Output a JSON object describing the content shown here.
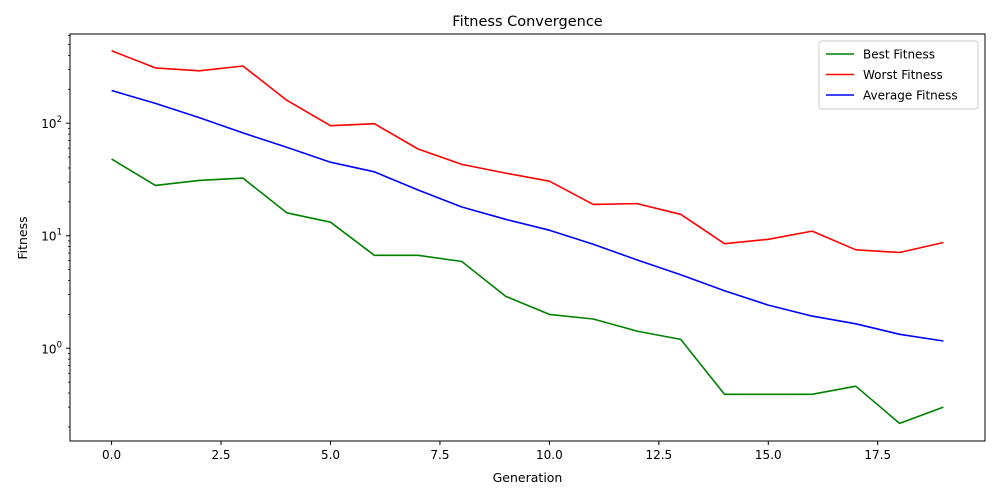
{
  "chart_data": {
    "type": "line",
    "title": "Fitness Convergence",
    "xlabel": "Generation",
    "ylabel": "Fitness",
    "yscale": "log",
    "xlim": [
      -0.95,
      19.95
    ],
    "ylim": [
      0.15,
      620
    ],
    "x_ticks": [
      0.0,
      2.5,
      5.0,
      7.5,
      10.0,
      12.5,
      15.0,
      17.5
    ],
    "x_tick_labels": [
      "0.0",
      "2.5",
      "5.0",
      "7.5",
      "10.0",
      "12.5",
      "15.0",
      "17.5"
    ],
    "y_ticks": [
      {
        "value": 1,
        "base": "10",
        "exp": "0"
      },
      {
        "value": 10,
        "base": "10",
        "exp": "1"
      },
      {
        "value": 100,
        "base": "10",
        "exp": "2"
      }
    ],
    "grid": false,
    "legend_position": "top-right",
    "x": [
      0,
      1,
      2,
      3,
      4,
      5,
      6,
      7,
      8,
      9,
      10,
      11,
      12,
      13,
      14,
      15,
      16,
      17,
      18,
      19
    ],
    "series": [
      {
        "name": "Best Fitness",
        "color": "#008000",
        "values": [
          48,
          28,
          31,
          32.5,
          16,
          13.2,
          6.7,
          6.7,
          5.9,
          2.9,
          2.0,
          1.82,
          1.42,
          1.2,
          0.39,
          0.39,
          0.39,
          0.46,
          0.215,
          0.3
        ]
      },
      {
        "name": "Worst Fitness",
        "color": "#ff0000",
        "values": [
          440,
          310,
          292,
          322,
          160,
          95,
          99,
          59,
          43,
          36,
          30.5,
          19,
          19.3,
          15.5,
          8.5,
          9.3,
          11,
          7.5,
          7.1,
          8.7
        ]
      },
      {
        "name": "Average Fitness",
        "color": "#0000ff",
        "values": [
          195,
          150,
          112,
          82,
          61,
          45,
          37,
          25.5,
          18,
          14,
          11.2,
          8.4,
          6.1,
          4.5,
          3.25,
          2.42,
          1.93,
          1.65,
          1.33,
          1.16
        ]
      }
    ]
  }
}
